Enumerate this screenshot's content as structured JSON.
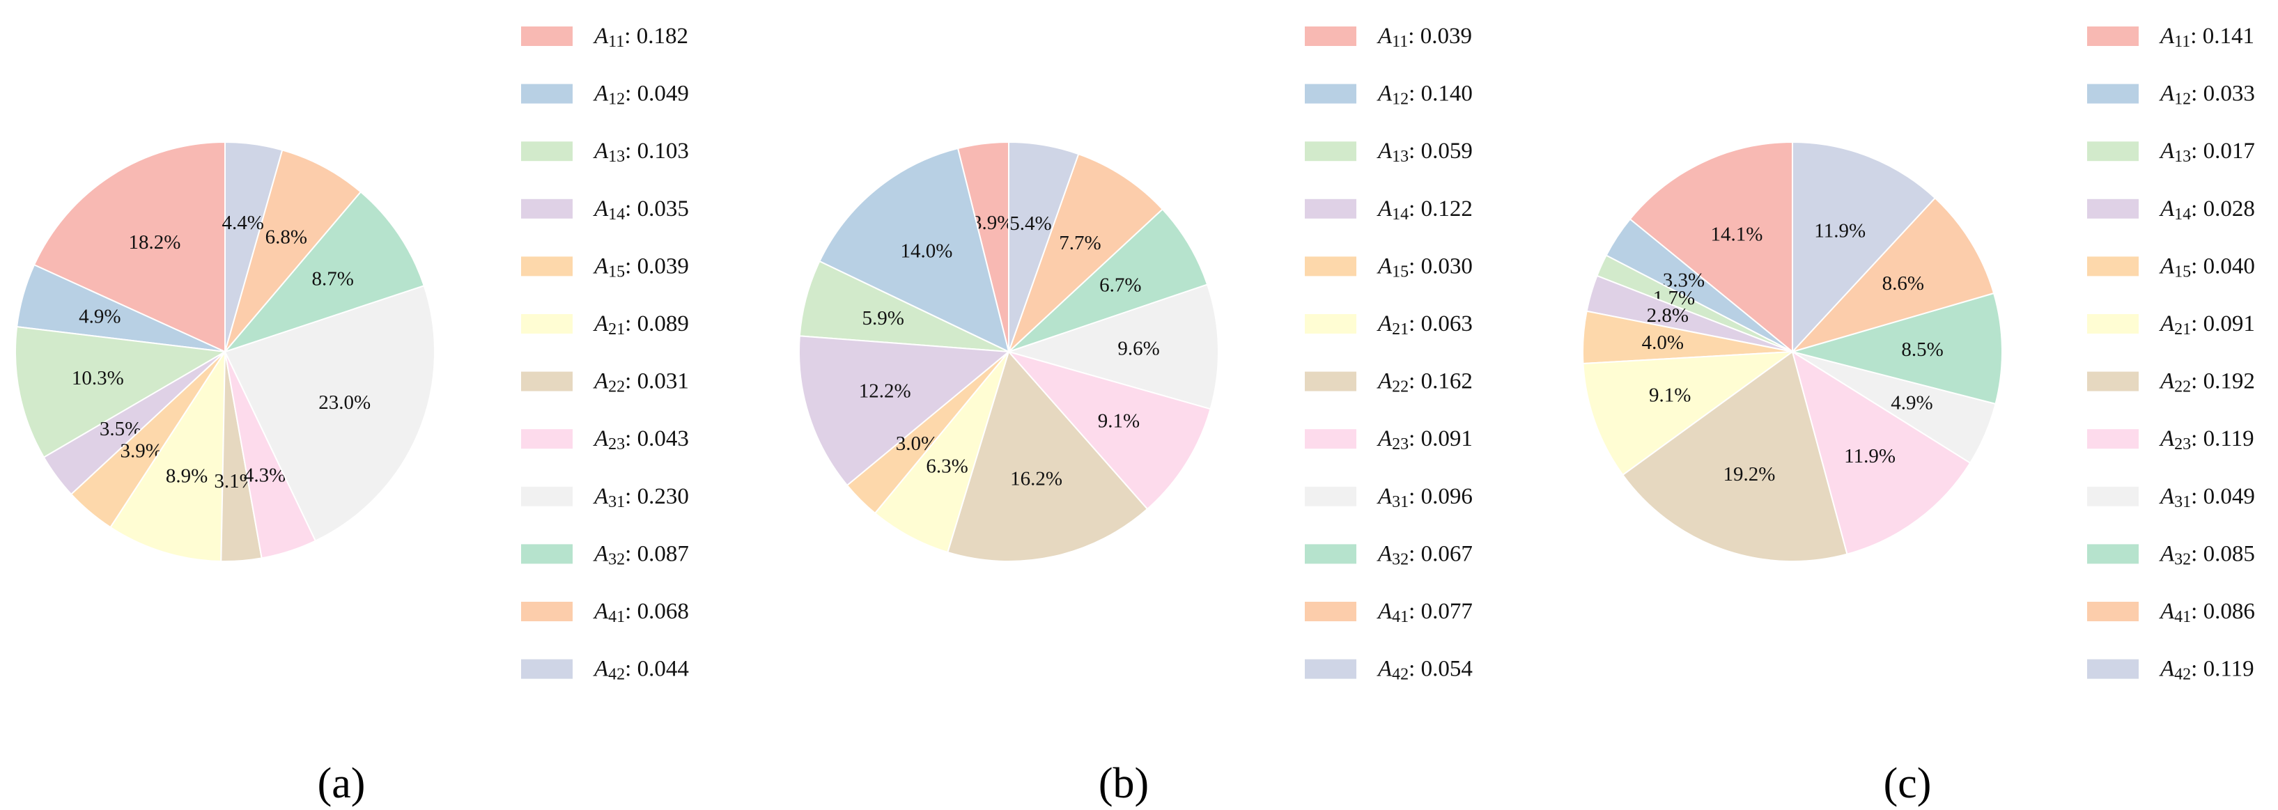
{
  "colors": [
    "#F8B9B3",
    "#B8D0E4",
    "#D2EACB",
    "#DFD1E6",
    "#FDD8AB",
    "#FFFDD3",
    "#E6D8C0",
    "#FDDBEC",
    "#F1F1F1",
    "#B6E3CD",
    "#FCCDAB",
    "#CFD5E6"
  ],
  "chart_data": [
    {
      "type": "pie",
      "caption": "(a)",
      "slices": [
        {
          "sym": "A",
          "sub": "11",
          "value": "0.182",
          "pct": "18.2%"
        },
        {
          "sym": "A",
          "sub": "12",
          "value": "0.049",
          "pct": "4.9%"
        },
        {
          "sym": "A",
          "sub": "13",
          "value": "0.103",
          "pct": "10.3%"
        },
        {
          "sym": "A",
          "sub": "14",
          "value": "0.035",
          "pct": "3.5%"
        },
        {
          "sym": "A",
          "sub": "15",
          "value": "0.039",
          "pct": "3.9%"
        },
        {
          "sym": "A",
          "sub": "21",
          "value": "0.089",
          "pct": "8.9%"
        },
        {
          "sym": "A",
          "sub": "22",
          "value": "0.031",
          "pct": "3.1%"
        },
        {
          "sym": "A",
          "sub": "23",
          "value": "0.043",
          "pct": "4.3%"
        },
        {
          "sym": "A",
          "sub": "31",
          "value": "0.230",
          "pct": "23.0%"
        },
        {
          "sym": "A",
          "sub": "32",
          "value": "0.087",
          "pct": "8.7%"
        },
        {
          "sym": "A",
          "sub": "41",
          "value": "0.068",
          "pct": "6.8%"
        },
        {
          "sym": "A",
          "sub": "42",
          "value": "0.044",
          "pct": "4.4%"
        }
      ]
    },
    {
      "type": "pie",
      "caption": "(b)",
      "slices": [
        {
          "sym": "A",
          "sub": "11",
          "value": "0.039",
          "pct": "3.9%"
        },
        {
          "sym": "A",
          "sub": "12",
          "value": "0.140",
          "pct": "14.0%"
        },
        {
          "sym": "A",
          "sub": "13",
          "value": "0.059",
          "pct": "5.9%"
        },
        {
          "sym": "A",
          "sub": "14",
          "value": "0.122",
          "pct": "12.2%"
        },
        {
          "sym": "A",
          "sub": "15",
          "value": "0.030",
          "pct": "3.0%"
        },
        {
          "sym": "A",
          "sub": "21",
          "value": "0.063",
          "pct": "6.3%"
        },
        {
          "sym": "A",
          "sub": "22",
          "value": "0.162",
          "pct": "16.2%"
        },
        {
          "sym": "A",
          "sub": "23",
          "value": "0.091",
          "pct": "9.1%"
        },
        {
          "sym": "A",
          "sub": "31",
          "value": "0.096",
          "pct": "9.6%"
        },
        {
          "sym": "A",
          "sub": "32",
          "value": "0.067",
          "pct": "6.7%"
        },
        {
          "sym": "A",
          "sub": "41",
          "value": "0.077",
          "pct": "7.7%"
        },
        {
          "sym": "A",
          "sub": "42",
          "value": "0.054",
          "pct": "5.4%"
        }
      ]
    },
    {
      "type": "pie",
      "caption": "(c)",
      "slices": [
        {
          "sym": "A",
          "sub": "11",
          "value": "0.141",
          "pct": "14.1%"
        },
        {
          "sym": "A",
          "sub": "12",
          "value": "0.033",
          "pct": "3.3%"
        },
        {
          "sym": "A",
          "sub": "13",
          "value": "0.017",
          "pct": "1.7%"
        },
        {
          "sym": "A",
          "sub": "14",
          "value": "0.028",
          "pct": "2.8%"
        },
        {
          "sym": "A",
          "sub": "15",
          "value": "0.040",
          "pct": "4.0%"
        },
        {
          "sym": "A",
          "sub": "21",
          "value": "0.091",
          "pct": "9.1%"
        },
        {
          "sym": "A",
          "sub": "22",
          "value": "0.192",
          "pct": "19.2%"
        },
        {
          "sym": "A",
          "sub": "23",
          "value": "0.119",
          "pct": "11.9%"
        },
        {
          "sym": "A",
          "sub": "31",
          "value": "0.049",
          "pct": "4.9%"
        },
        {
          "sym": "A",
          "sub": "32",
          "value": "0.085",
          "pct": "8.5%"
        },
        {
          "sym": "A",
          "sub": "41",
          "value": "0.086",
          "pct": "8.6%"
        },
        {
          "sym": "A",
          "sub": "42",
          "value": "0.119",
          "pct": "11.9%"
        }
      ]
    }
  ]
}
